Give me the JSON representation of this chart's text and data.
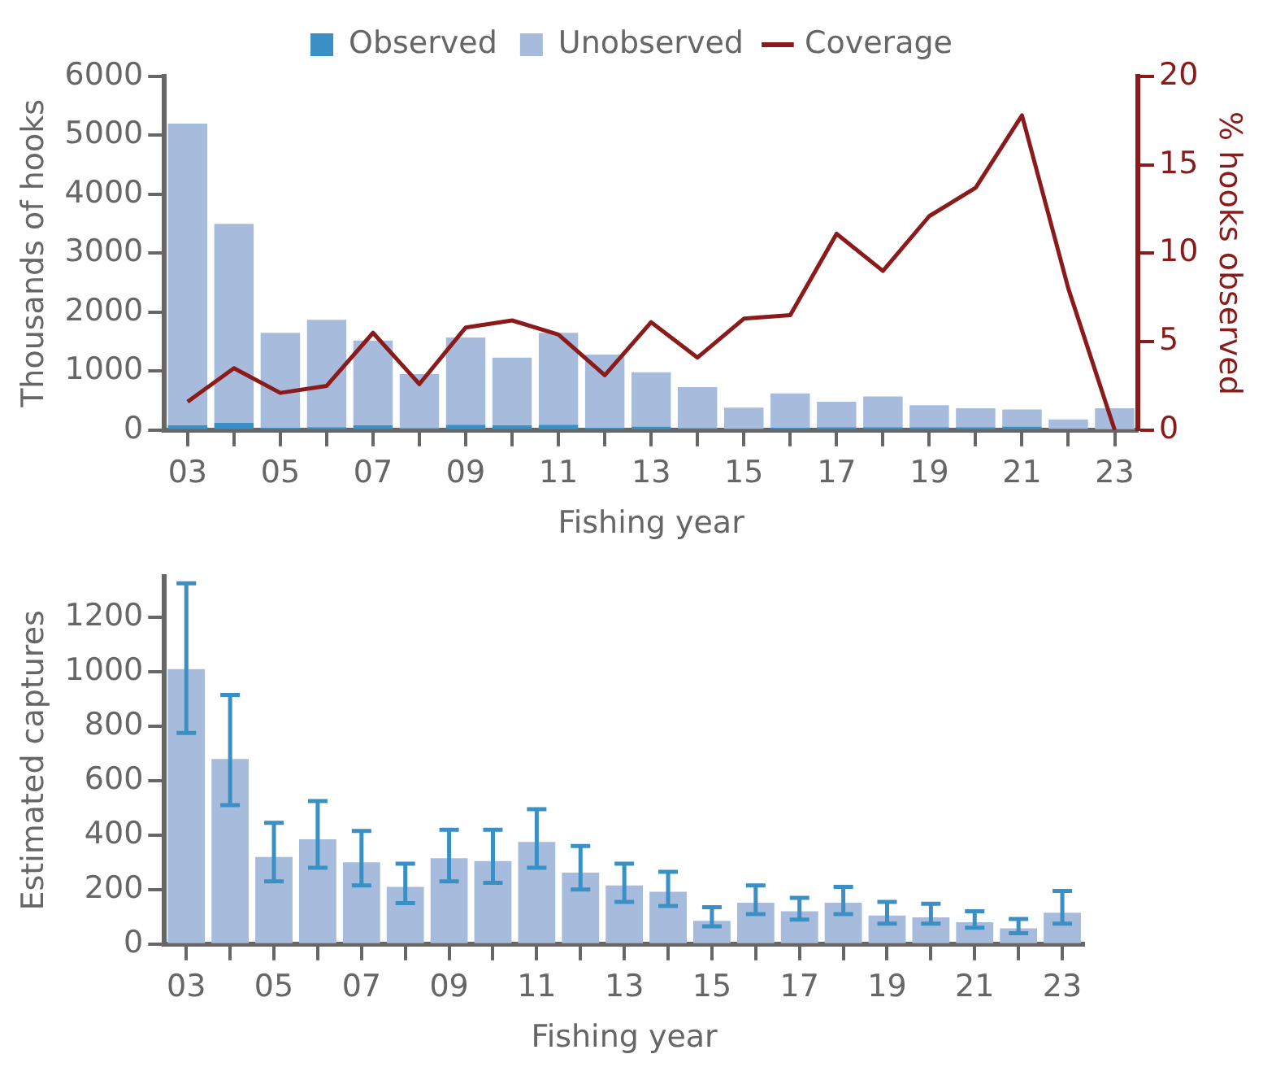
{
  "chart_data": [
    {
      "type": "bar",
      "xlabel": "Fishing year",
      "ylabel": "Thousands of hooks",
      "y2label": "% hooks observed",
      "categories": [
        "03",
        null,
        "05",
        null,
        "07",
        null,
        "09",
        null,
        "11",
        null,
        "13",
        null,
        "15",
        null,
        "17",
        null,
        "19",
        null,
        "21",
        null,
        "23"
      ],
      "stacked": true,
      "legend": "top",
      "grid": false,
      "marker": "none",
      "ylim": [
        0,
        6000
      ],
      "yticks": [
        0,
        1000,
        2000,
        3000,
        4000,
        5000,
        6000
      ],
      "y2lim": [
        0,
        20
      ],
      "y2ticks": [
        0,
        5,
        10,
        15,
        20
      ],
      "series": [
        {
          "name": "Observed",
          "color": "#3a8fc4",
          "values": [
            80,
            120,
            40,
            50,
            80,
            30,
            90,
            80,
            90,
            40,
            60,
            30,
            20,
            40,
            50,
            50,
            50,
            50,
            60,
            20,
            0
          ]
        },
        {
          "name": "Unobserved",
          "color": "#a7bcdc",
          "values": [
            5120,
            3380,
            1610,
            1820,
            1440,
            920,
            1480,
            1150,
            1560,
            1240,
            920,
            700,
            360,
            580,
            430,
            520,
            370,
            320,
            290,
            160,
            370
          ]
        },
        {
          "name": "Coverage",
          "type": "line",
          "axis": "y2",
          "color": "#8b1a1a",
          "values": [
            1.6,
            3.5,
            2.1,
            2.5,
            5.5,
            2.6,
            5.8,
            6.2,
            5.4,
            3.1,
            6.1,
            4.1,
            6.3,
            6.5,
            11.1,
            9.0,
            12.1,
            13.7,
            17.8,
            8.0,
            0
          ]
        }
      ]
    },
    {
      "type": "bar",
      "xlabel": "Fishing year",
      "ylabel": "Estimated captures",
      "categories": [
        "03",
        null,
        "05",
        null,
        "07",
        null,
        "09",
        null,
        "11",
        null,
        "13",
        null,
        "15",
        null,
        "17",
        null,
        "19",
        null,
        "21",
        null,
        "23"
      ],
      "grid": false,
      "ylim": [
        0,
        1350
      ],
      "yticks": [
        0,
        200,
        400,
        600,
        800,
        1000,
        1200
      ],
      "series": [
        {
          "color": "#a7bcdc",
          "values": [
            1010,
            680,
            320,
            385,
            300,
            210,
            315,
            305,
            375,
            262,
            215,
            192,
            85,
            152,
            120,
            152,
            105,
            98,
            80,
            58,
            115
          ],
          "errors": [
            [
              775,
              1325
            ],
            [
              510,
              915
            ],
            [
              230,
              445
            ],
            [
              280,
              525
            ],
            [
              215,
              415
            ],
            [
              150,
              295
            ],
            [
              230,
              420
            ],
            [
              225,
              420
            ],
            [
              280,
              495
            ],
            [
              200,
              360
            ],
            [
              155,
              295
            ],
            [
              140,
              265
            ],
            [
              65,
              135
            ],
            [
              110,
              215
            ],
            [
              90,
              170
            ],
            [
              110,
              210
            ],
            [
              75,
              155
            ],
            [
              75,
              148
            ],
            [
              60,
              120
            ],
            [
              40,
              92
            ],
            [
              75,
              195
            ]
          ]
        }
      ]
    }
  ]
}
